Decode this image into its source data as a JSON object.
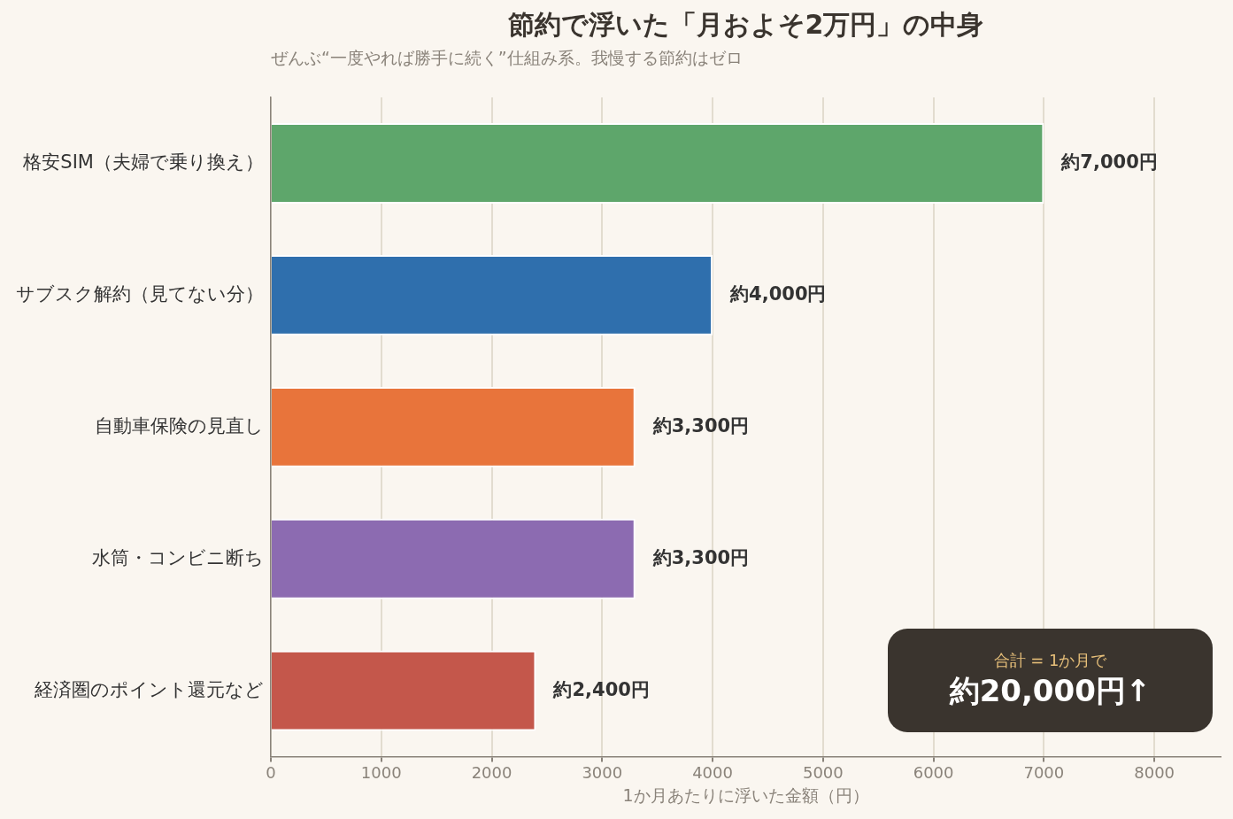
{
  "chart_data": {
    "type": "bar",
    "orientation": "horizontal",
    "title": "節約で浮いた「月およそ2万円」の中身",
    "subtitle": "ぜんぶ“一度やれば勝手に続く”仕組み系。我慢する節約はゼロ",
    "xlabel": "1か月あたりに浮いた金額（円）",
    "categories": [
      "格安SIM（夫婦で乗り換え）",
      "サブスク解約（見てない分）",
      "自動車保険の見直し",
      "水筒・コンビニ断ち",
      "経済圏のポイント還元など"
    ],
    "values": [
      7000,
      4000,
      3300,
      3300,
      2400
    ],
    "colors": [
      "#5ea66b",
      "#2f6fad",
      "#e8743b",
      "#8c6bb1",
      "#c4574b"
    ],
    "value_labels": [
      "約7,000円",
      "約4,000円",
      "約3,300円",
      "約3,300円",
      "約2,400円"
    ],
    "xlim": [
      0,
      8600
    ],
    "xticks": [
      0,
      1000,
      2000,
      3000,
      4000,
      5000,
      6000,
      7000,
      8000
    ],
    "grid": "x",
    "legend": false,
    "annotations": [
      "合計 = 1か月で",
      "約20,000円↑"
    ]
  }
}
